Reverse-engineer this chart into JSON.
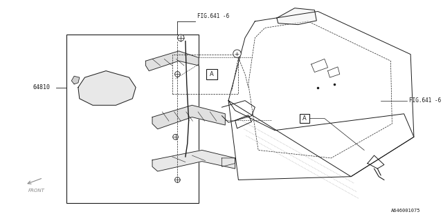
{
  "background_color": "#ffffff",
  "line_color": "#1a1a1a",
  "gray_color": "#888888",
  "fig_width": 6.4,
  "fig_height": 3.2,
  "dpi": 100,
  "labels": {
    "fig641_6_top": "FIG.641 -6",
    "fig641_6_right": "FIG.641 -6",
    "part_64810": "64810",
    "part_number": "A646001075"
  }
}
